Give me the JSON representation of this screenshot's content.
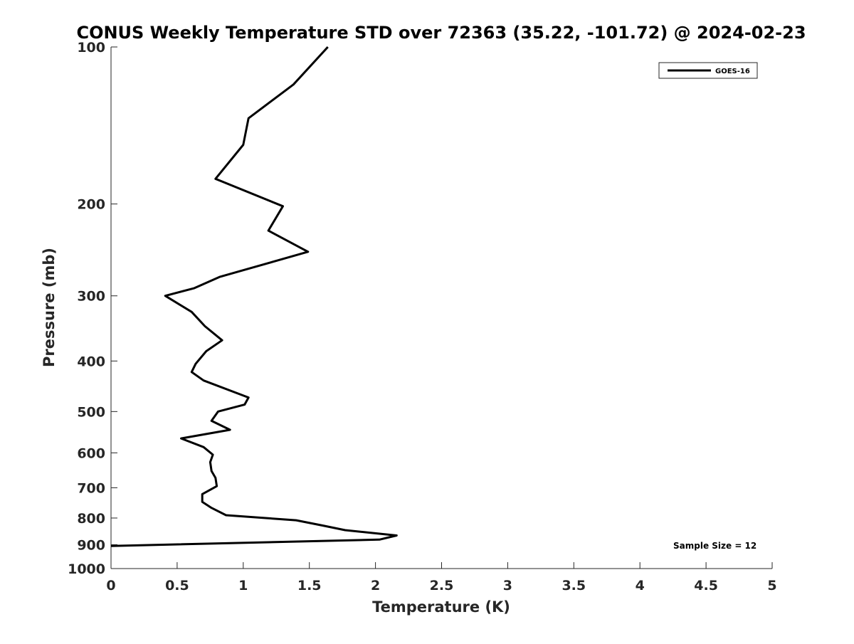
{
  "chart_data": {
    "type": "line",
    "title": "CONUS Weekly Temperature STD over 72363 (35.22, -101.72) @ 2024-02-23",
    "xlabel": "Temperature (K)",
    "ylabel": "Pressure (mb)",
    "xlim": [
      0,
      5
    ],
    "ylim": [
      100,
      1000
    ],
    "y_scale": "log",
    "y_reversed": true,
    "xticks": [
      0,
      0.5,
      1,
      1.5,
      2,
      2.5,
      3,
      3.5,
      4,
      4.5,
      5
    ],
    "xtick_labels": [
      "0",
      "0.5",
      "1",
      "1.5",
      "2",
      "2.5",
      "3",
      "3.5",
      "4",
      "4.5",
      "5"
    ],
    "yticks": [
      100,
      200,
      300,
      400,
      500,
      600,
      700,
      800,
      900,
      1000
    ],
    "ytick_labels": [
      "100",
      "200",
      "300",
      "400",
      "500",
      "600",
      "700",
      "800",
      "900",
      "1000"
    ],
    "grid": false,
    "legend_position": "top-right",
    "annotation": "Sample Size = 12",
    "series": [
      {
        "name": "GOES-16",
        "color": "#000000",
        "points": [
          {
            "x": 1.64,
            "p": 100
          },
          {
            "x": 1.38,
            "p": 118
          },
          {
            "x": 1.04,
            "p": 137
          },
          {
            "x": 1.0,
            "p": 154
          },
          {
            "x": 0.79,
            "p": 179
          },
          {
            "x": 1.3,
            "p": 202
          },
          {
            "x": 1.19,
            "p": 225
          },
          {
            "x": 1.49,
            "p": 247
          },
          {
            "x": 0.82,
            "p": 276
          },
          {
            "x": 0.63,
            "p": 290
          },
          {
            "x": 0.41,
            "p": 300
          },
          {
            "x": 0.61,
            "p": 322
          },
          {
            "x": 0.71,
            "p": 343
          },
          {
            "x": 0.84,
            "p": 365
          },
          {
            "x": 0.72,
            "p": 383
          },
          {
            "x": 0.64,
            "p": 405
          },
          {
            "x": 0.61,
            "p": 420
          },
          {
            "x": 0.7,
            "p": 436
          },
          {
            "x": 1.04,
            "p": 470
          },
          {
            "x": 1.01,
            "p": 485
          },
          {
            "x": 0.81,
            "p": 500
          },
          {
            "x": 0.76,
            "p": 521
          },
          {
            "x": 0.9,
            "p": 542
          },
          {
            "x": 0.53,
            "p": 563
          },
          {
            "x": 0.7,
            "p": 585
          },
          {
            "x": 0.77,
            "p": 605
          },
          {
            "x": 0.75,
            "p": 625
          },
          {
            "x": 0.76,
            "p": 650
          },
          {
            "x": 0.79,
            "p": 670
          },
          {
            "x": 0.8,
            "p": 695
          },
          {
            "x": 0.69,
            "p": 720
          },
          {
            "x": 0.69,
            "p": 745
          },
          {
            "x": 0.76,
            "p": 765
          },
          {
            "x": 0.87,
            "p": 790
          },
          {
            "x": 1.4,
            "p": 808
          },
          {
            "x": 1.6,
            "p": 827
          },
          {
            "x": 1.77,
            "p": 844
          },
          {
            "x": 2.16,
            "p": 864
          },
          {
            "x": 2.03,
            "p": 880
          },
          {
            "x": 0.0,
            "p": 905
          }
        ]
      }
    ]
  }
}
